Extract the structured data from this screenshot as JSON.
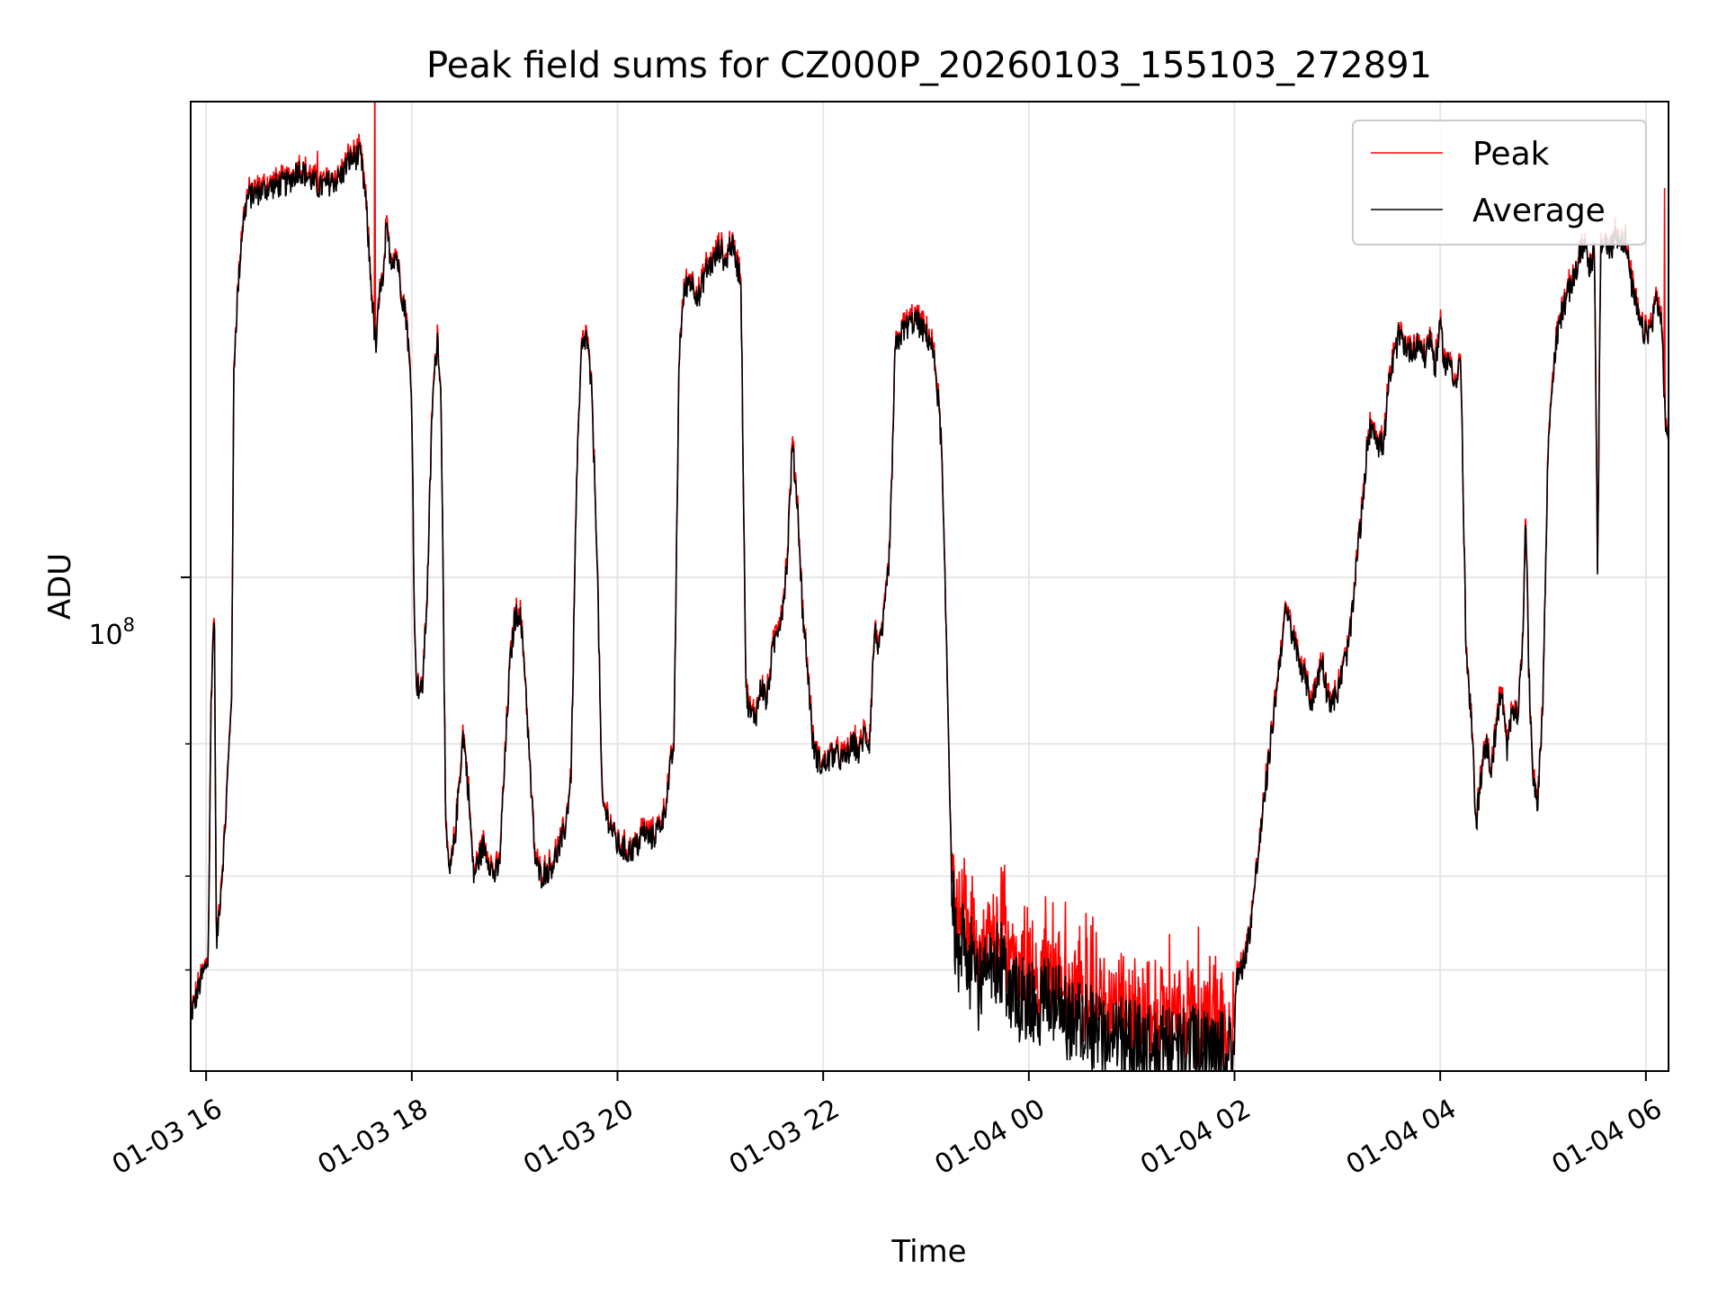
{
  "chart_data": {
    "type": "line",
    "title": "Peak field sums for CZ000P_20260103_155103_272891",
    "xlabel": "Time",
    "ylabel": "ADU",
    "y_scale": "log",
    "ylim": [
      22000000,
      430000000
    ],
    "xlim_hours_from_0103_1600": [
      -0.15,
      14.22
    ],
    "grid": true,
    "legend_position": "upper right",
    "x_ticks": [
      {
        "hour": 0,
        "label": "01-03 16"
      },
      {
        "hour": 2,
        "label": "01-03 18"
      },
      {
        "hour": 4,
        "label": "01-03 20"
      },
      {
        "hour": 6,
        "label": "01-03 22"
      },
      {
        "hour": 8,
        "label": "01-04 00"
      },
      {
        "hour": 10,
        "label": "01-04 02"
      },
      {
        "hour": 12,
        "label": "01-04 04"
      },
      {
        "hour": 14,
        "label": "01-04 06"
      }
    ],
    "y_ticks": [
      {
        "value": 100000000,
        "base": "10",
        "exp": "8"
      }
    ],
    "y_minor_ticks": [
      30000000,
      40000000,
      60000000
    ],
    "series": [
      {
        "name": "Peak",
        "color": "#ff0000"
      },
      {
        "name": "Average",
        "color": "#000000"
      }
    ],
    "average_profile": [
      [
        -0.15,
        26000000
      ],
      [
        -0.05,
        29000000
      ],
      [
        0.02,
        31000000
      ],
      [
        0.05,
        70000000
      ],
      [
        0.08,
        92000000
      ],
      [
        0.1,
        32000000
      ],
      [
        0.18,
        45000000
      ],
      [
        0.22,
        58000000
      ],
      [
        0.25,
        72000000
      ],
      [
        0.27,
        190000000
      ],
      [
        0.3,
        230000000
      ],
      [
        0.35,
        290000000
      ],
      [
        0.4,
        320000000
      ],
      [
        0.6,
        330000000
      ],
      [
        0.8,
        335000000
      ],
      [
        0.9,
        350000000
      ],
      [
        1.0,
        340000000
      ],
      [
        1.1,
        330000000
      ],
      [
        1.2,
        335000000
      ],
      [
        1.3,
        340000000
      ],
      [
        1.4,
        360000000
      ],
      [
        1.5,
        365000000
      ],
      [
        1.55,
        320000000
      ],
      [
        1.6,
        250000000
      ],
      [
        1.65,
        200000000
      ],
      [
        1.7,
        250000000
      ],
      [
        1.72,
        240000000
      ],
      [
        1.75,
        290000000
      ],
      [
        1.8,
        265000000
      ],
      [
        1.85,
        270000000
      ],
      [
        1.9,
        240000000
      ],
      [
        1.95,
        220000000
      ],
      [
        2.0,
        170000000
      ],
      [
        2.03,
        80000000
      ],
      [
        2.05,
        72000000
      ],
      [
        2.1,
        70000000
      ],
      [
        2.15,
        95000000
      ],
      [
        2.2,
        170000000
      ],
      [
        2.25,
        210000000
      ],
      [
        2.28,
        180000000
      ],
      [
        2.3,
        120000000
      ],
      [
        2.33,
        45000000
      ],
      [
        2.37,
        40000000
      ],
      [
        2.42,
        45000000
      ],
      [
        2.5,
        62000000
      ],
      [
        2.55,
        52000000
      ],
      [
        2.6,
        40000000
      ],
      [
        2.65,
        42000000
      ],
      [
        2.7,
        44000000
      ],
      [
        2.75,
        42000000
      ],
      [
        2.8,
        40000000
      ],
      [
        2.85,
        41000000
      ],
      [
        2.9,
        55000000
      ],
      [
        2.95,
        75000000
      ],
      [
        3.0,
        88000000
      ],
      [
        3.05,
        90000000
      ],
      [
        3.1,
        75000000
      ],
      [
        3.15,
        55000000
      ],
      [
        3.2,
        42000000
      ],
      [
        3.25,
        40000000
      ],
      [
        3.35,
        41000000
      ],
      [
        3.45,
        44000000
      ],
      [
        3.5,
        47000000
      ],
      [
        3.55,
        55000000
      ],
      [
        3.6,
        130000000
      ],
      [
        3.65,
        200000000
      ],
      [
        3.7,
        210000000
      ],
      [
        3.75,
        175000000
      ],
      [
        3.8,
        110000000
      ],
      [
        3.85,
        50000000
      ],
      [
        3.9,
        48000000
      ],
      [
        3.95,
        46000000
      ],
      [
        4.0,
        44000000
      ],
      [
        4.1,
        43000000
      ],
      [
        4.2,
        44000000
      ],
      [
        4.25,
        46000000
      ],
      [
        4.3,
        45000000
      ],
      [
        4.35,
        45000000
      ],
      [
        4.45,
        48000000
      ],
      [
        4.55,
        60000000
      ],
      [
        4.6,
        200000000
      ],
      [
        4.65,
        240000000
      ],
      [
        4.7,
        250000000
      ],
      [
        4.8,
        235000000
      ],
      [
        4.85,
        255000000
      ],
      [
        4.95,
        265000000
      ],
      [
        5.0,
        275000000
      ],
      [
        5.05,
        260000000
      ],
      [
        5.1,
        280000000
      ],
      [
        5.2,
        250000000
      ],
      [
        5.22,
        150000000
      ],
      [
        5.25,
        70000000
      ],
      [
        5.3,
        65000000
      ],
      [
        5.35,
        66000000
      ],
      [
        5.4,
        72000000
      ],
      [
        5.45,
        68000000
      ],
      [
        5.5,
        78000000
      ],
      [
        5.55,
        85000000
      ],
      [
        5.6,
        90000000
      ],
      [
        5.65,
        105000000
      ],
      [
        5.7,
        150000000
      ],
      [
        5.75,
        125000000
      ],
      [
        5.8,
        90000000
      ],
      [
        5.85,
        75000000
      ],
      [
        5.9,
        60000000
      ],
      [
        5.95,
        57000000
      ],
      [
        6.0,
        56000000
      ],
      [
        6.1,
        58000000
      ],
      [
        6.2,
        57000000
      ],
      [
        6.3,
        60000000
      ],
      [
        6.35,
        58000000
      ],
      [
        6.4,
        62000000
      ],
      [
        6.45,
        60000000
      ],
      [
        6.5,
        85000000
      ],
      [
        6.55,
        80000000
      ],
      [
        6.6,
        90000000
      ],
      [
        6.65,
        110000000
      ],
      [
        6.7,
        200000000
      ],
      [
        6.75,
        210000000
      ],
      [
        6.8,
        215000000
      ],
      [
        6.9,
        220000000
      ],
      [
        7.0,
        210000000
      ],
      [
        7.05,
        205000000
      ],
      [
        7.1,
        185000000
      ],
      [
        7.15,
        150000000
      ],
      [
        7.2,
        80000000
      ],
      [
        7.25,
        40000000
      ],
      [
        7.3,
        30000000
      ],
      [
        7.35,
        33000000
      ],
      [
        7.4,
        28000000
      ],
      [
        7.45,
        32000000
      ],
      [
        7.5,
        28000000
      ],
      [
        7.55,
        30000000
      ],
      [
        7.65,
        30000000
      ],
      [
        7.7,
        31000000
      ],
      [
        7.75,
        31000000
      ],
      [
        7.8,
        29000000
      ],
      [
        7.9,
        27500000
      ],
      [
        8.0,
        27000000
      ],
      [
        8.2,
        27500000
      ],
      [
        8.4,
        25500000
      ],
      [
        8.6,
        25000000
      ],
      [
        8.8,
        24500000
      ],
      [
        9.0,
        24000000
      ],
      [
        9.2,
        23700000
      ],
      [
        9.4,
        23300000
      ],
      [
        9.6,
        23500000
      ],
      [
        9.8,
        23200000
      ],
      [
        9.98,
        23000000
      ],
      [
        10.02,
        29000000
      ],
      [
        10.1,
        31000000
      ],
      [
        10.15,
        34000000
      ],
      [
        10.25,
        45000000
      ],
      [
        10.35,
        60000000
      ],
      [
        10.45,
        80000000
      ],
      [
        10.5,
        90000000
      ],
      [
        10.55,
        85000000
      ],
      [
        10.6,
        80000000
      ],
      [
        10.7,
        72000000
      ],
      [
        10.75,
        68000000
      ],
      [
        10.8,
        72000000
      ],
      [
        10.85,
        78000000
      ],
      [
        10.9,
        70000000
      ],
      [
        10.95,
        68000000
      ],
      [
        11.0,
        70000000
      ],
      [
        11.05,
        75000000
      ],
      [
        11.1,
        80000000
      ],
      [
        11.15,
        90000000
      ],
      [
        11.2,
        110000000
      ],
      [
        11.25,
        125000000
      ],
      [
        11.3,
        155000000
      ],
      [
        11.35,
        160000000
      ],
      [
        11.4,
        150000000
      ],
      [
        11.45,
        150000000
      ],
      [
        11.5,
        180000000
      ],
      [
        11.55,
        195000000
      ],
      [
        11.6,
        210000000
      ],
      [
        11.7,
        200000000
      ],
      [
        11.8,
        205000000
      ],
      [
        11.85,
        195000000
      ],
      [
        11.9,
        210000000
      ],
      [
        11.95,
        190000000
      ],
      [
        12.0,
        215000000
      ],
      [
        12.05,
        190000000
      ],
      [
        12.1,
        195000000
      ],
      [
        12.15,
        180000000
      ],
      [
        12.2,
        195000000
      ],
      [
        12.23,
        115000000
      ],
      [
        12.25,
        80000000
      ],
      [
        12.28,
        70000000
      ],
      [
        12.3,
        65000000
      ],
      [
        12.35,
        47000000
      ],
      [
        12.4,
        55000000
      ],
      [
        12.45,
        60000000
      ],
      [
        12.5,
        55000000
      ],
      [
        12.55,
        65000000
      ],
      [
        12.6,
        70000000
      ],
      [
        12.65,
        58000000
      ],
      [
        12.7,
        68000000
      ],
      [
        12.75,
        65000000
      ],
      [
        12.8,
        80000000
      ],
      [
        12.83,
        125000000
      ],
      [
        12.86,
        75000000
      ],
      [
        12.9,
        55000000
      ],
      [
        12.95,
        50000000
      ],
      [
        13.0,
        70000000
      ],
      [
        13.05,
        150000000
      ],
      [
        13.1,
        190000000
      ],
      [
        13.15,
        215000000
      ],
      [
        13.2,
        230000000
      ],
      [
        13.3,
        250000000
      ],
      [
        13.35,
        265000000
      ],
      [
        13.4,
        280000000
      ],
      [
        13.45,
        260000000
      ],
      [
        13.5,
        270000000
      ],
      [
        13.53,
        100000000
      ],
      [
        13.56,
        275000000
      ],
      [
        13.6,
        280000000
      ],
      [
        13.65,
        270000000
      ],
      [
        13.7,
        285000000
      ],
      [
        13.8,
        280000000
      ],
      [
        13.85,
        250000000
      ],
      [
        13.9,
        230000000
      ],
      [
        13.95,
        215000000
      ],
      [
        14.0,
        210000000
      ],
      [
        14.05,
        215000000
      ],
      [
        14.1,
        235000000
      ],
      [
        14.15,
        220000000
      ],
      [
        14.2,
        150000000
      ],
      [
        14.22,
        155000000
      ]
    ]
  },
  "labels": {
    "title": "Peak field sums for CZ000P_20260103_155103_272891",
    "xlabel": "Time",
    "ylabel": "ADU",
    "legend_peak": "Peak",
    "legend_average": "Average",
    "ytick_base": "10",
    "ytick_exp": "8"
  },
  "colors": {
    "peak": "#ff0000",
    "average": "#000000",
    "grid": "#e6e6e6"
  }
}
